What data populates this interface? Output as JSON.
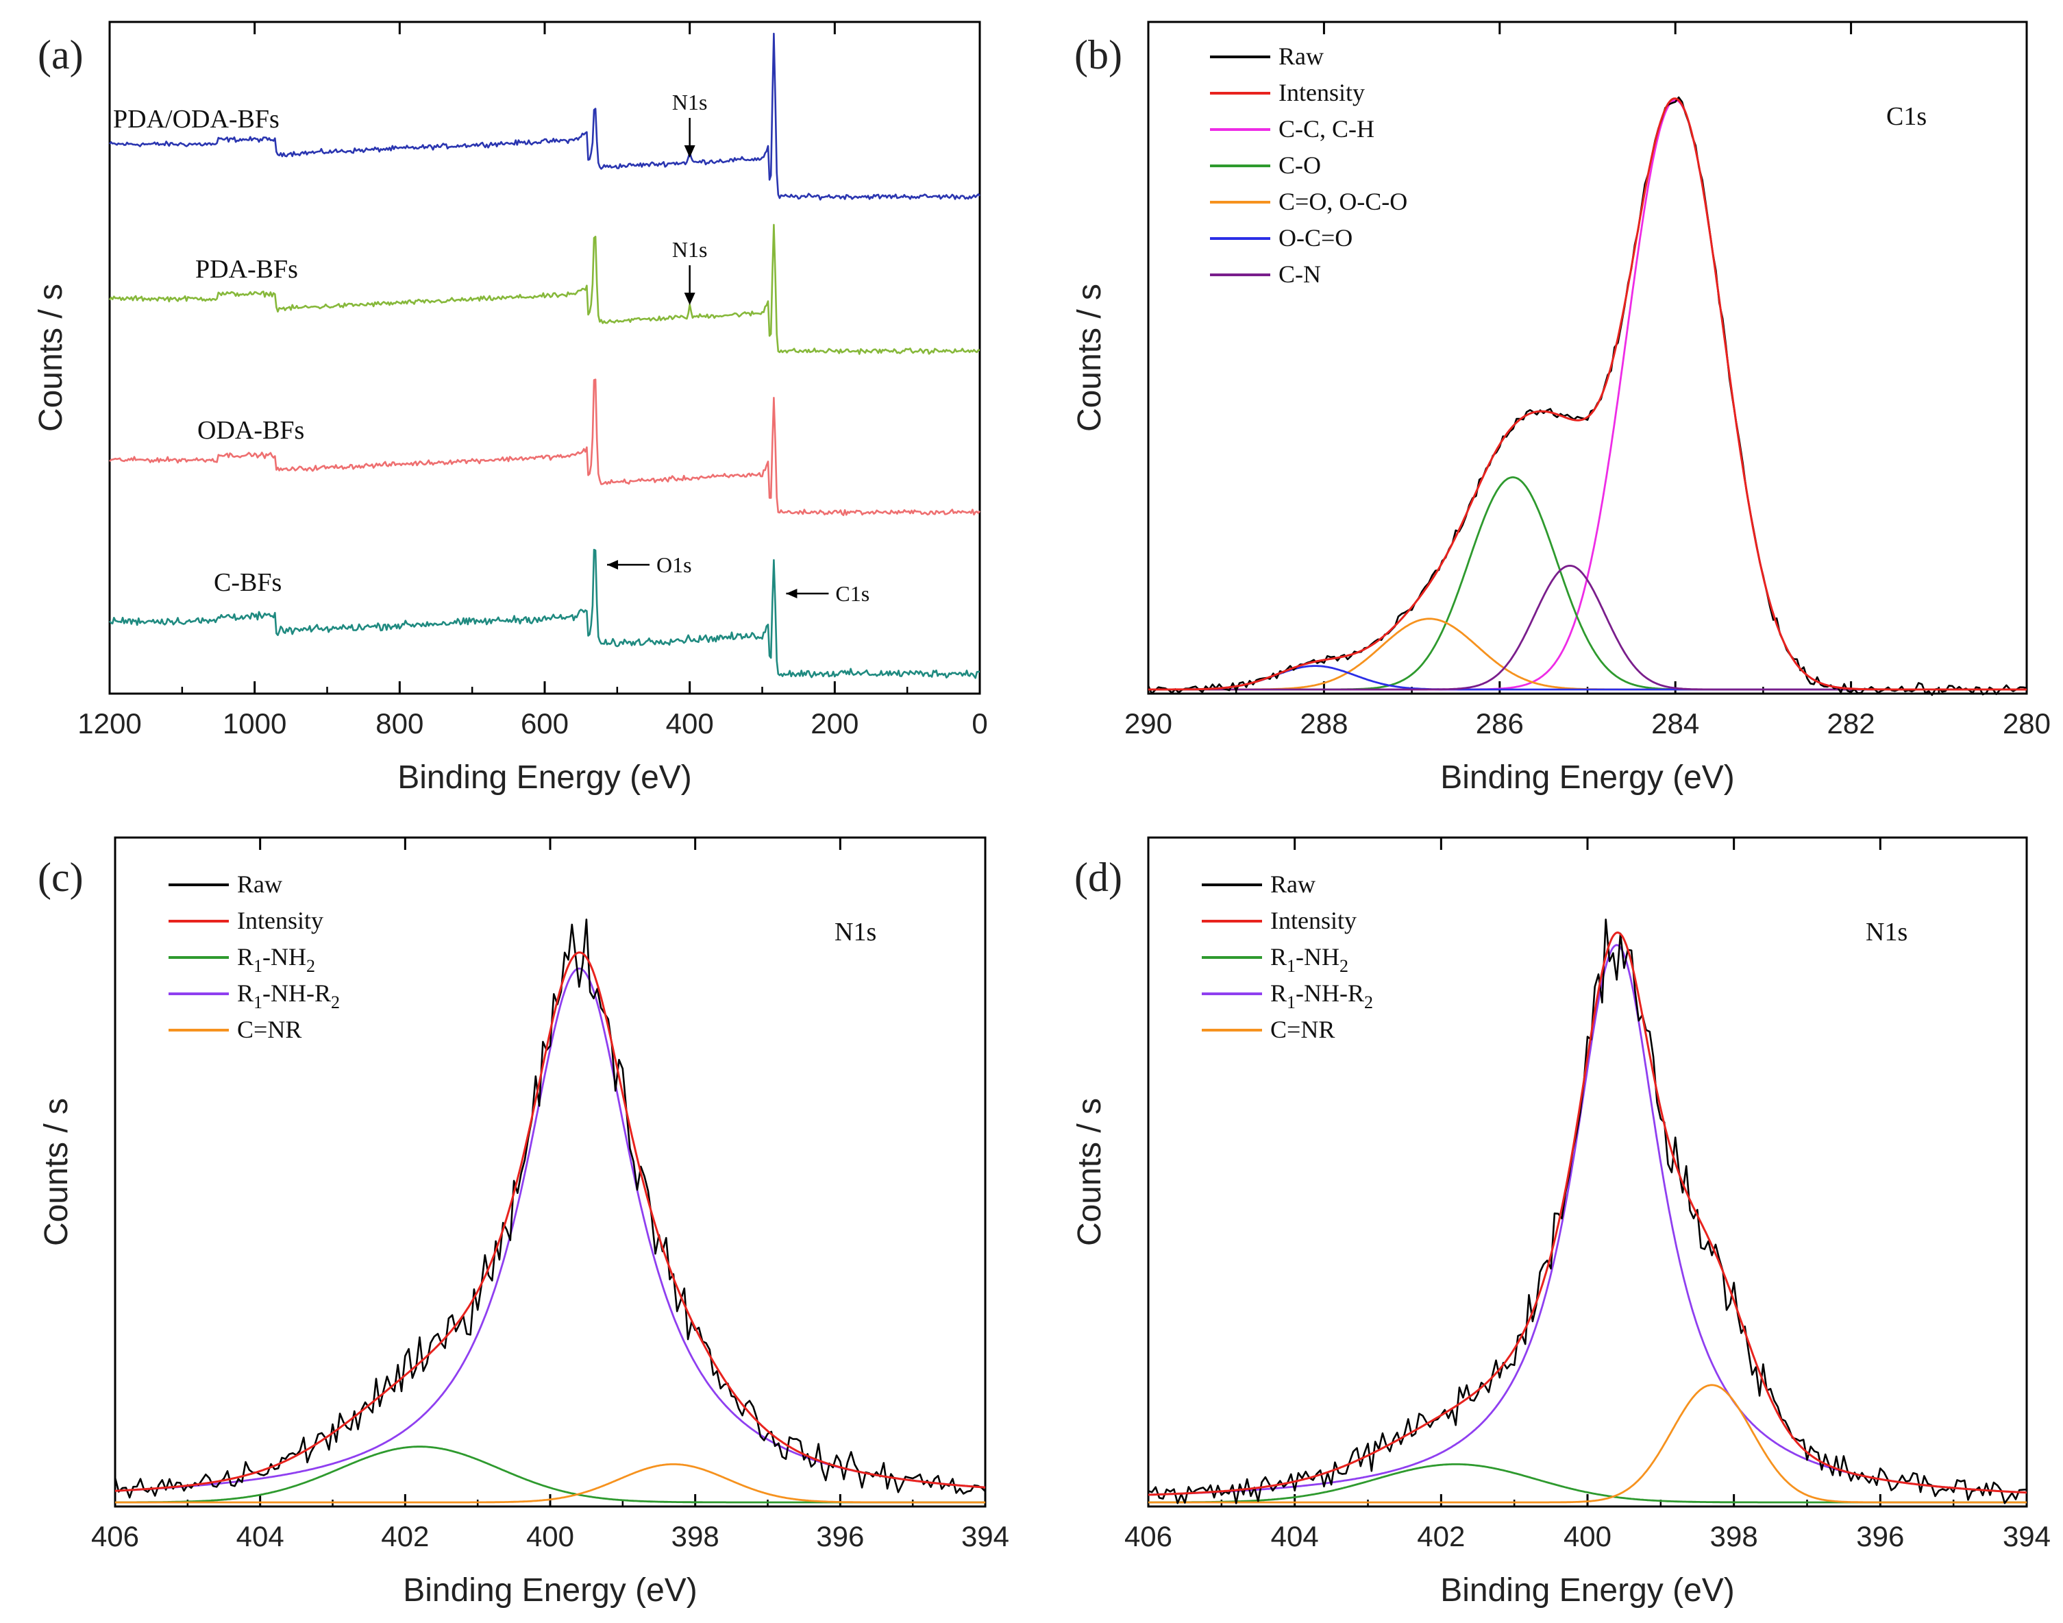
{
  "chart_data": [
    {
      "id": "a",
      "type": "line",
      "panel_label": "(a)",
      "xlabel": "Binding Energy (eV)",
      "ylabel": "Counts / s",
      "xlim": [
        1200,
        0
      ],
      "ylim": [
        0,
        100
      ],
      "xticks": [
        1200,
        1000,
        800,
        600,
        400,
        200,
        0
      ],
      "xtick_labels": [
        "1200",
        "1000",
        "800",
        "600",
        "400",
        "200",
        "0"
      ],
      "legend": "none",
      "series": [
        {
          "name": "PDA/ODA-BFs",
          "color": "#2a35b0",
          "offset": 74,
          "n1s": true
        },
        {
          "name": "PDA-BFs",
          "color": "#86b83a",
          "offset": 51,
          "n1s": true
        },
        {
          "name": "ODA-BFs",
          "color": "#ee6f70",
          "offset": 27,
          "n1s": false
        },
        {
          "name": "C-BFs",
          "color": "#1f8a80",
          "offset": 3,
          "n1s": false
        }
      ],
      "annotations": [
        {
          "text": "N1s",
          "series": 0,
          "x": 400,
          "kind": "arrow-down"
        },
        {
          "text": "N1s",
          "series": 1,
          "x": 400,
          "kind": "arrow-down"
        },
        {
          "text": "O1s",
          "series": 3,
          "x": 531,
          "kind": "arrow-left"
        },
        {
          "text": "C1s",
          "series": 3,
          "x": 284,
          "kind": "arrow-left"
        }
      ]
    },
    {
      "id": "b",
      "type": "line",
      "panel_label": "(b)",
      "xlabel": "Binding Energy (eV)",
      "ylabel": "Counts / s",
      "xlim": [
        290,
        280
      ],
      "ylim": [
        0,
        100
      ],
      "xticks": [
        290,
        288,
        286,
        284,
        282,
        280
      ],
      "xtick_labels": [
        "290",
        "288",
        "286",
        "284",
        "282",
        "280"
      ],
      "region_label": "C1s",
      "legend": "top-left",
      "series": [
        {
          "name": "Raw",
          "color": "#000000",
          "kind": "raw"
        },
        {
          "name": "Intensity",
          "color": "#e8231e",
          "kind": "envelope"
        },
        {
          "name": "C-C, C-H",
          "color": "#ee2ce6",
          "kind": "peak",
          "center": 284.0,
          "height": 100,
          "sigma": 0.55
        },
        {
          "name": "C-O",
          "color": "#2e9a2e",
          "kind": "peak",
          "center": 285.85,
          "height": 36,
          "sigma": 0.5
        },
        {
          "name": "C=O, O-C-O",
          "color": "#f6921e",
          "kind": "peak",
          "center": 286.8,
          "height": 12,
          "sigma": 0.55
        },
        {
          "name": "O-C=O",
          "color": "#2b2ee6",
          "kind": "peak",
          "center": 288.1,
          "height": 4,
          "sigma": 0.45
        },
        {
          "name": "C-N",
          "color": "#7a1e8c",
          "kind": "peak",
          "center": 285.2,
          "height": 21,
          "sigma": 0.4
        }
      ]
    },
    {
      "id": "c",
      "type": "line",
      "panel_label": "(c)",
      "xlabel": "Binding Energy (eV)",
      "ylabel": "Counts / s",
      "xlim": [
        406,
        394
      ],
      "ylim": [
        0,
        100
      ],
      "xticks": [
        406,
        404,
        402,
        400,
        398,
        396,
        394
      ],
      "xtick_labels": [
        "406",
        "404",
        "402",
        "400",
        "398",
        "396",
        "394"
      ],
      "region_label": "N1s",
      "legend": "top-left",
      "series": [
        {
          "name": "Raw",
          "color": "#000000",
          "kind": "raw"
        },
        {
          "name": "Intensity",
          "color": "#e8231e",
          "kind": "envelope"
        },
        {
          "name": "R",
          "sub1": "1",
          "mid": "-NH",
          "sub2": "2",
          "tail": "",
          "color": "#2e9a2e",
          "kind": "peak",
          "center": 401.8,
          "height": 9.5,
          "sigma": 1.1
        },
        {
          "name": "R",
          "sub1": "1",
          "mid": "-NH-R",
          "sub2": "2",
          "tail": "",
          "color": "#8f3ff0",
          "kind": "lorentz",
          "center": 399.6,
          "height": 91,
          "gamma": 0.95
        },
        {
          "name": "C=NR",
          "color": "#f6921e",
          "kind": "peak",
          "center": 398.3,
          "height": 6.5,
          "sigma": 0.75
        }
      ]
    },
    {
      "id": "d",
      "type": "line",
      "panel_label": "(d)",
      "xlabel": "Binding Energy (eV)",
      "ylabel": "Counts / s",
      "xlim": [
        406,
        394
      ],
      "ylim": [
        0,
        100
      ],
      "xticks": [
        406,
        404,
        402,
        400,
        398,
        396,
        394
      ],
      "xtick_labels": [
        "406",
        "404",
        "402",
        "400",
        "398",
        "396",
        "394"
      ],
      "region_label": "N1s",
      "legend": "top-left",
      "series": [
        {
          "name": "Raw",
          "color": "#000000",
          "kind": "raw"
        },
        {
          "name": "Intensity",
          "color": "#e8231e",
          "kind": "envelope"
        },
        {
          "name": "R",
          "sub1": "1",
          "mid": "-NH",
          "sub2": "2",
          "tail": "",
          "color": "#2e9a2e",
          "kind": "peak",
          "center": 401.8,
          "height": 6.5,
          "sigma": 1.1
        },
        {
          "name": "R",
          "sub1": "1",
          "mid": "-NH-R",
          "sub2": "2",
          "tail": "",
          "color": "#8f3ff0",
          "kind": "lorentz",
          "center": 399.6,
          "height": 95,
          "gamma": 0.75
        },
        {
          "name": "C=NR",
          "color": "#f6921e",
          "kind": "peak",
          "center": 398.3,
          "height": 20,
          "sigma": 0.55
        }
      ]
    }
  ]
}
